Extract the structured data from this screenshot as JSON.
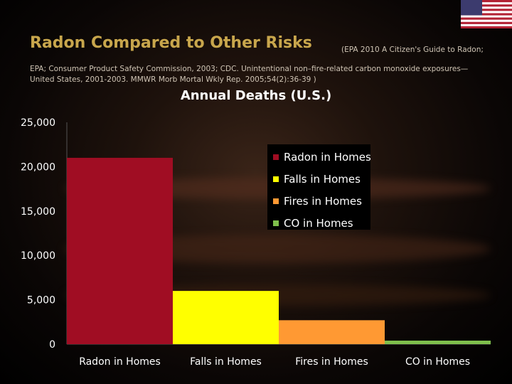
{
  "header": {
    "title": "Radon Compared to Other Risks",
    "citation_inline": "(EPA 2010 A Citizen's Guide to Radon;",
    "citation_line1": "EPA; Consumer Product Safety Commission, 2003; CDC. Unintentional non–fire-related carbon monoxide exposures—",
    "citation_line2": "United States, 2001-2003. MMWR Morb Mortal Wkly Rep. 2005;54(2):36-39 )"
  },
  "chart_data": {
    "type": "bar",
    "title": "Annual Deaths (U.S.)",
    "categories": [
      "Radon in Homes",
      "Falls in Homes",
      "Fires in Homes",
      "CO in Homes"
    ],
    "values": [
      21000,
      6000,
      2700,
      400
    ],
    "colors": [
      "#a00d23",
      "#ffff00",
      "#ff9933",
      "#7fbf4c"
    ],
    "ylim": [
      0,
      25000
    ],
    "yticks": [
      "0",
      "5,000",
      "10,000",
      "15,000",
      "20,000",
      "25,000"
    ],
    "grid": false,
    "legend": {
      "position": "top-right",
      "items": [
        "Radon in Homes",
        "Falls in Homes",
        "Fires in Homes",
        "CO in Homes"
      ]
    }
  },
  "flag": {
    "icon": "us-flag-icon"
  }
}
